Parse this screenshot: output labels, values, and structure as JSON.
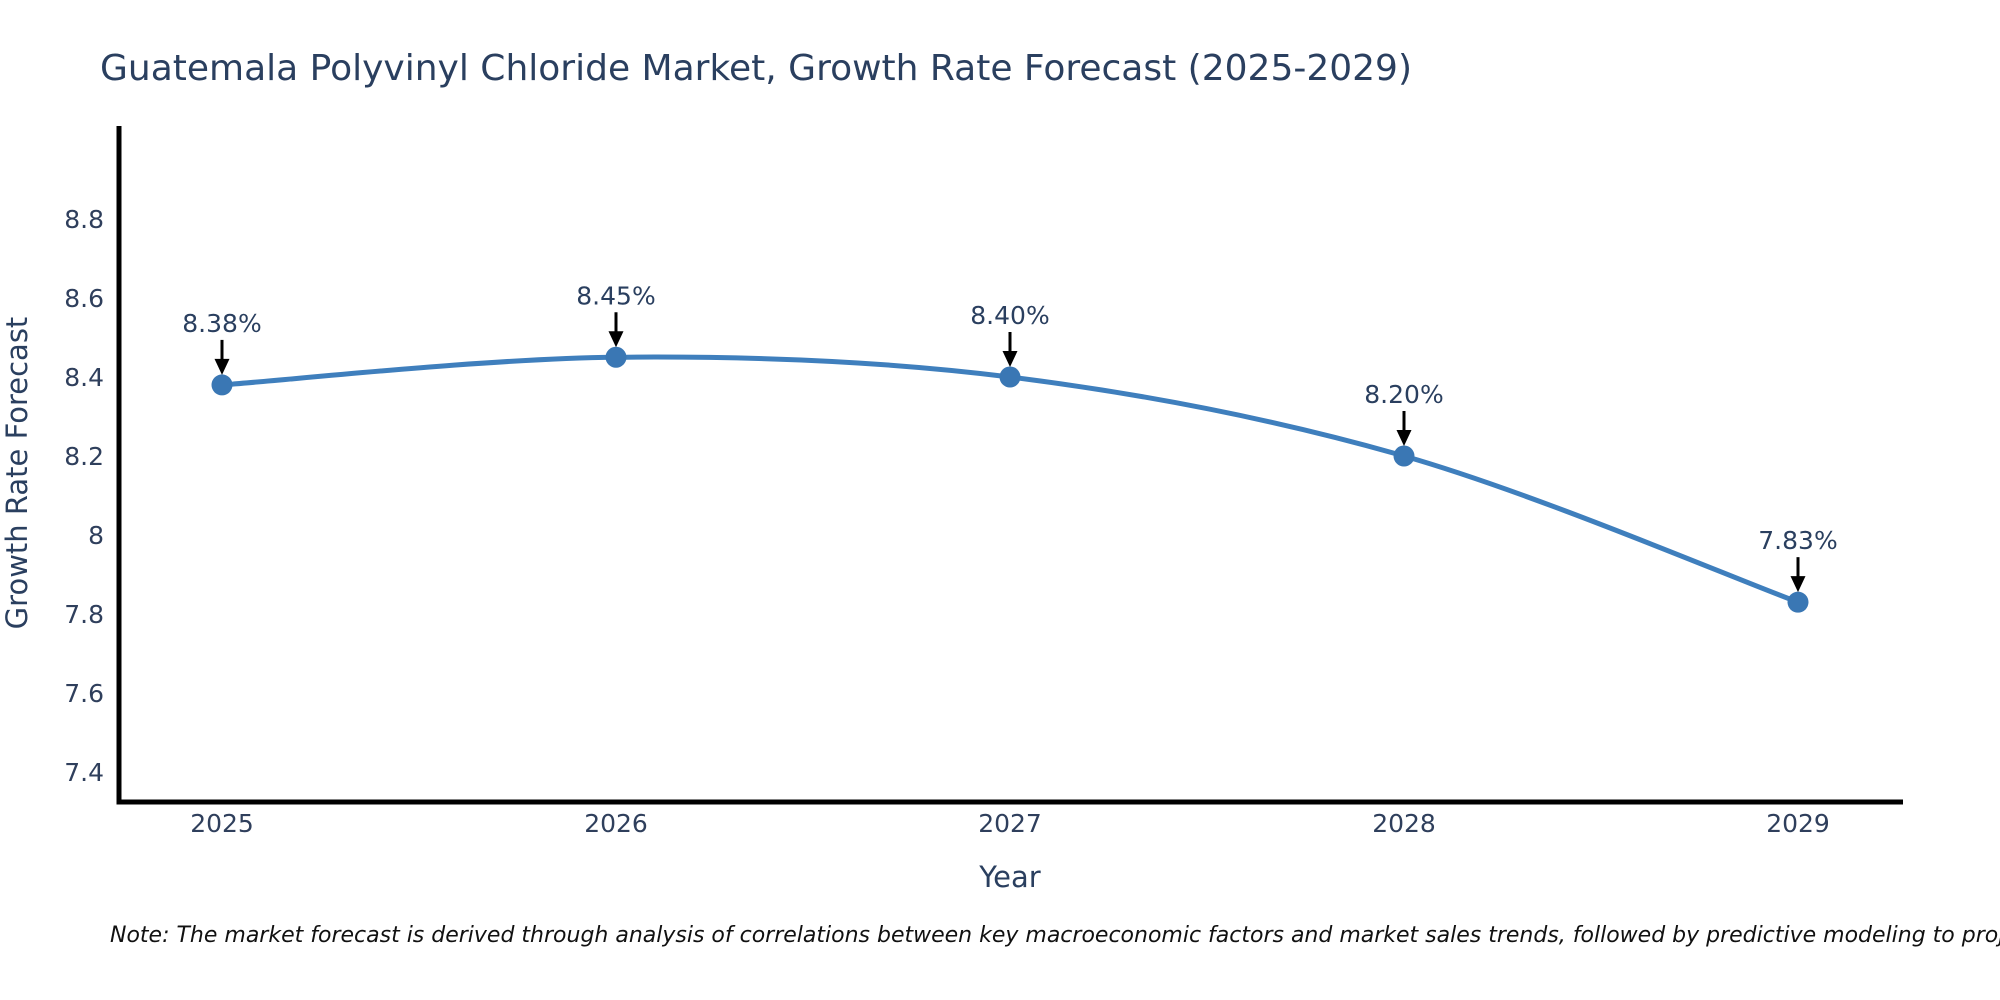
{
  "chart_data": {
    "type": "line",
    "title": "Guatemala Polyvinyl Chloride Market, Growth Rate Forecast (2025-2029)",
    "xlabel": "Year",
    "ylabel": "Growth Rate Forecast",
    "categories": [
      2025,
      2026,
      2027,
      2028,
      2029
    ],
    "series": [
      {
        "name": "Growth Rate Forecast",
        "values": [
          8.38,
          8.45,
          8.4,
          8.2,
          7.83
        ],
        "point_labels": [
          "8.38%",
          "8.45%",
          "8.40%",
          "8.20%",
          "7.83%"
        ]
      }
    ],
    "ytick_labels": [
      "8.8",
      "8.6",
      "8.4",
      "8.2",
      "8",
      "7.8",
      "7.6",
      "7.4"
    ],
    "ytick_values": [
      8.8,
      8.6,
      8.4,
      8.2,
      8.0,
      7.8,
      7.6,
      7.4
    ],
    "ylim": [
      7.32,
      9.04
    ],
    "grid": false,
    "legend_position": "none",
    "line_shape": "spline",
    "line_color": "#3f7fbd",
    "marker_color": "#3a77b4",
    "axis_color": "#000000",
    "text_color": "#2a3f5f",
    "annotation_arrow_color": "#000000",
    "note": "Note: The market forecast is derived through analysis of correlations between key macroeconomic factors and market sales trends, followed by predictive modeling to project future sales"
  }
}
